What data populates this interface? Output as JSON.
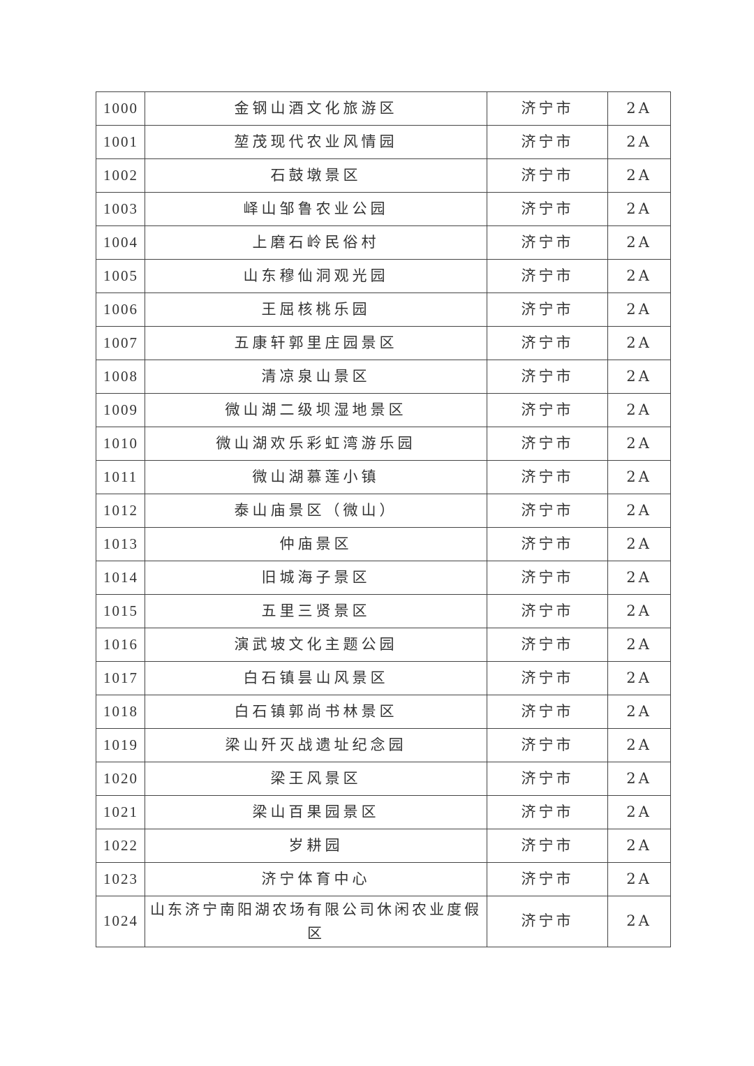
{
  "table": {
    "rows": [
      {
        "no": "1000",
        "name": "金钢山酒文化旅游区",
        "city": "济宁市",
        "grade": "2A"
      },
      {
        "no": "1001",
        "name": "堃茂现代农业风情园",
        "city": "济宁市",
        "grade": "2A"
      },
      {
        "no": "1002",
        "name": "石鼓墩景区",
        "city": "济宁市",
        "grade": "2A"
      },
      {
        "no": "1003",
        "name": "峄山邹鲁农业公园",
        "city": "济宁市",
        "grade": "2A"
      },
      {
        "no": "1004",
        "name": "上磨石岭民俗村",
        "city": "济宁市",
        "grade": "2A"
      },
      {
        "no": "1005",
        "name": "山东穆仙洞观光园",
        "city": "济宁市",
        "grade": "2A"
      },
      {
        "no": "1006",
        "name": "王屈核桃乐园",
        "city": "济宁市",
        "grade": "2A"
      },
      {
        "no": "1007",
        "name": "五康轩郭里庄园景区",
        "city": "济宁市",
        "grade": "2A"
      },
      {
        "no": "1008",
        "name": "清凉泉山景区",
        "city": "济宁市",
        "grade": "2A"
      },
      {
        "no": "1009",
        "name": "微山湖二级坝湿地景区",
        "city": "济宁市",
        "grade": "2A"
      },
      {
        "no": "1010",
        "name": "微山湖欢乐彩虹湾游乐园",
        "city": "济宁市",
        "grade": "2A"
      },
      {
        "no": "1011",
        "name": "微山湖慕莲小镇",
        "city": "济宁市",
        "grade": "2A"
      },
      {
        "no": "1012",
        "name": "泰山庙景区（微山）",
        "city": "济宁市",
        "grade": "2A"
      },
      {
        "no": "1013",
        "name": "仲庙景区",
        "city": "济宁市",
        "grade": "2A"
      },
      {
        "no": "1014",
        "name": "旧城海子景区",
        "city": "济宁市",
        "grade": "2A"
      },
      {
        "no": "1015",
        "name": "五里三贤景区",
        "city": "济宁市",
        "grade": "2A"
      },
      {
        "no": "1016",
        "name": "演武坡文化主题公园",
        "city": "济宁市",
        "grade": "2A"
      },
      {
        "no": "1017",
        "name": "白石镇昙山风景区",
        "city": "济宁市",
        "grade": "2A"
      },
      {
        "no": "1018",
        "name": "白石镇郭尚书林景区",
        "city": "济宁市",
        "grade": "2A"
      },
      {
        "no": "1019",
        "name": "梁山歼灭战遗址纪念园",
        "city": "济宁市",
        "grade": "2A"
      },
      {
        "no": "1020",
        "name": "梁王风景区",
        "city": "济宁市",
        "grade": "2A"
      },
      {
        "no": "1021",
        "name": "梁山百果园景区",
        "city": "济宁市",
        "grade": "2A"
      },
      {
        "no": "1022",
        "name": "岁耕园",
        "city": "济宁市",
        "grade": "2A"
      },
      {
        "no": "1023",
        "name": "济宁体育中心",
        "city": "济宁市",
        "grade": "2A"
      },
      {
        "no": "1024",
        "name": "山东济宁南阳湖农场有限公司休闲农业度假区",
        "city": "济宁市",
        "grade": "2A"
      }
    ]
  }
}
